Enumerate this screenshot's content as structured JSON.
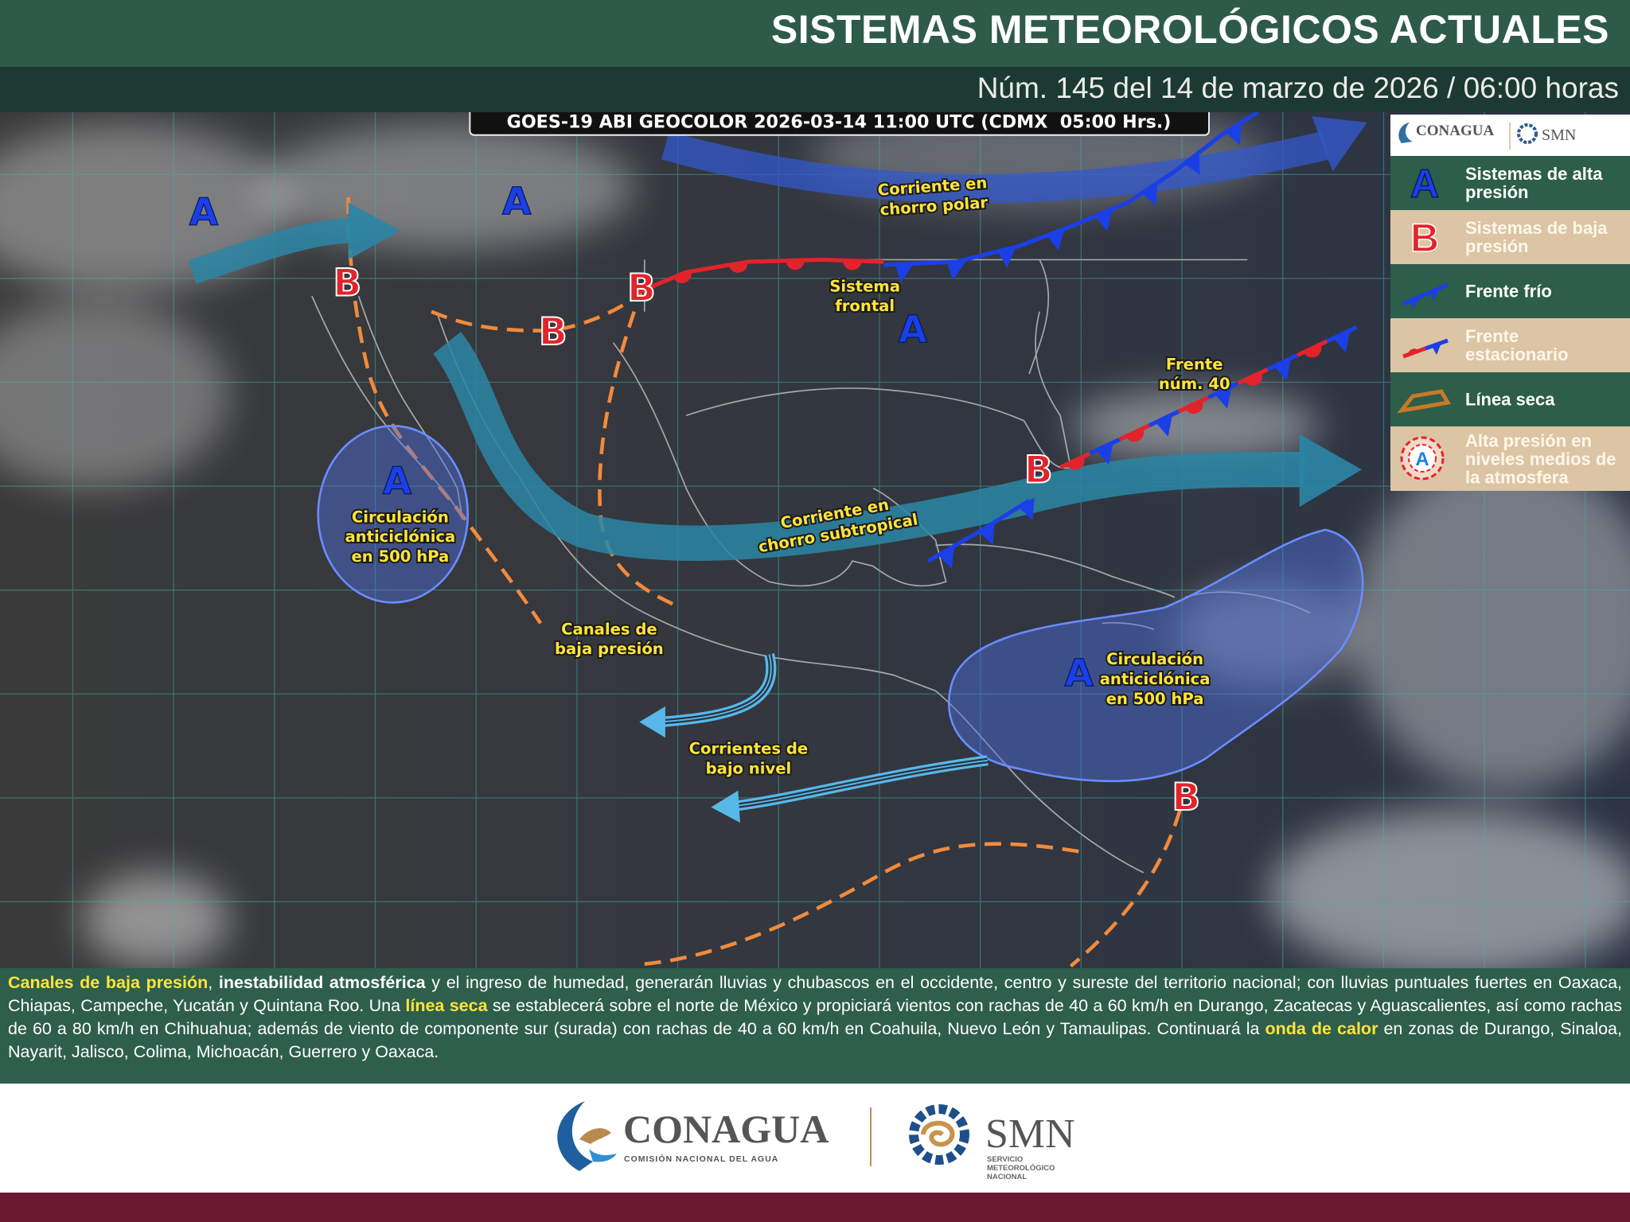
{
  "header": {
    "title": "SISTEMAS METEOROLÓGICOS ACTUALES",
    "subtitle": "Núm. 145 del 14 de marzo de 2026 / 06:00 horas"
  },
  "map": {
    "satellite_label": "GOES-19 ABI GEOCOLOR 2026-03-14 11:00 UTC (CDMX  05:00 Hrs.)",
    "highs": [
      "A",
      "A",
      "A",
      "A",
      "A"
    ],
    "lows": [
      "B",
      "B",
      "B",
      "B",
      "B"
    ],
    "annotations": [
      [
        "Corriente en",
        "chorro polar"
      ],
      [
        "Sistema",
        "frontal"
      ],
      [
        "Frente",
        "núm. 40"
      ],
      [
        "Circulación",
        "anticiclónica",
        "en 500 hPa"
      ],
      [
        "Corriente en",
        "chorro subtropical"
      ],
      [
        "Canales de",
        "baja presión"
      ],
      [
        "Circulación",
        "anticiclónica",
        "en 500 hPa"
      ],
      [
        "Corrientes de",
        "bajo nivel"
      ]
    ]
  },
  "legend": {
    "items": [
      {
        "symbol": "A",
        "label": "Sistemas de alta presión"
      },
      {
        "symbol": "B",
        "label": "Sistemas de baja presión"
      },
      {
        "label": "Frente frío"
      },
      {
        "label": "Frente estacionario"
      },
      {
        "label": "Línea seca"
      },
      {
        "symbol": "A",
        "label": "Alta presión en niveles medios de la atmosfera"
      }
    ]
  },
  "description": {
    "segments": [
      "Canales de baja presión",
      ", ",
      "inestabilidad atmosférica",
      " y el ingreso de humedad, generarán lluvias y chubascos en el occidente, centro y sureste del territorio nacional; con lluvias puntuales fuertes en Oaxaca, Chiapas, Campeche, Yucatán y Quintana Roo. Una ",
      "línea seca",
      " se establecerá sobre el norte de México y propiciará vientos con rachas de 40 a 60 km/h en Durango, Zacatecas y Aguascalientes, así como rachas de 60 a 80 km/h en Chihuahua; además de viento de componente sur (surada) con rachas de 40 a 60 km/h en Coahuila, Nuevo León y Tamaulipas. Continuará la ",
      "onda de calor",
      " en zonas de Durango, Sinaloa, Nayarit, Jalisco, Colima, Michoacán, Guerrero y Oaxaca."
    ]
  },
  "footer": {
    "conagua": "CONAGUA",
    "conagua_sub": "COMISIÓN NACIONAL DEL AGUA",
    "smn": "SMN",
    "smn_sub": [
      "SERVICIO",
      "METEOROLÓGICO",
      "NACIONAL"
    ]
  }
}
